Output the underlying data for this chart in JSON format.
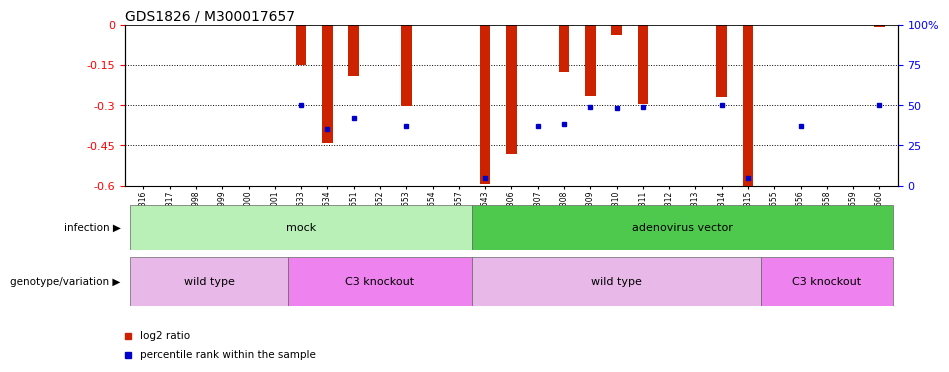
{
  "title": "GDS1826 / M300017657",
  "samples": [
    "GSM87316",
    "GSM87317",
    "GSM93998",
    "GSM93999",
    "GSM94000",
    "GSM94001",
    "GSM93633",
    "GSM93634",
    "GSM93651",
    "GSM93652",
    "GSM93653",
    "GSM93654",
    "GSM93657",
    "GSM86643",
    "GSM87306",
    "GSM87307",
    "GSM87308",
    "GSM87309",
    "GSM87310",
    "GSM87311",
    "GSM87312",
    "GSM87313",
    "GSM87314",
    "GSM87315",
    "GSM93655",
    "GSM93656",
    "GSM93658",
    "GSM93659",
    "GSM93660"
  ],
  "log2_ratio": [
    0,
    0,
    0,
    0,
    0,
    0,
    -0.15,
    -0.44,
    -0.19,
    0,
    -0.305,
    0,
    0,
    -0.595,
    -0.48,
    0,
    -0.175,
    -0.265,
    -0.04,
    -0.295,
    0,
    0,
    -0.27,
    -0.605,
    0,
    0,
    0,
    0,
    -0.01
  ],
  "percentile_rank": [
    null,
    null,
    null,
    null,
    null,
    null,
    50,
    35,
    42,
    null,
    37,
    null,
    null,
    5,
    null,
    37,
    38,
    49,
    48,
    49,
    null,
    null,
    50,
    5,
    null,
    37,
    null,
    null,
    50
  ],
  "infection_groups": [
    {
      "label": "mock",
      "start": 0,
      "end": 13,
      "color": "#b8f0b8"
    },
    {
      "label": "adenovirus vector",
      "start": 13,
      "end": 29,
      "color": "#4ec94e"
    }
  ],
  "genotype_groups": [
    {
      "label": "wild type",
      "start": 0,
      "end": 6,
      "color": "#e8b8e8"
    },
    {
      "label": "C3 knockout",
      "start": 6,
      "end": 13,
      "color": "#ee82ee"
    },
    {
      "label": "wild type",
      "start": 13,
      "end": 24,
      "color": "#e8b8e8"
    },
    {
      "label": "C3 knockout",
      "start": 24,
      "end": 29,
      "color": "#ee82ee"
    }
  ],
  "bar_color": "#cc2200",
  "point_color": "#0000cc",
  "ylim_left": [
    -0.6,
    0.0
  ],
  "ylim_right": [
    0,
    100
  ],
  "yticks_left": [
    0,
    -0.15,
    -0.3,
    -0.45,
    -0.6
  ],
  "ytick_labels_left": [
    "0",
    "-0.15",
    "-0.3",
    "-0.45",
    "-0.6"
  ],
  "yticks_right": [
    0,
    25,
    50,
    75,
    100
  ],
  "ytick_labels_right": [
    "0",
    "25",
    "50",
    "75",
    "100%"
  ],
  "bar_width": 0.4
}
